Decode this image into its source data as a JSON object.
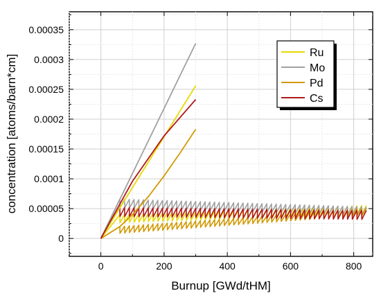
{
  "chart_data": {
    "type": "line",
    "title": "",
    "xlabel": "Burnup [GWd/tHM]",
    "ylabel": "concentration [atoms/barn*cm]",
    "xlim": [
      -100,
      860
    ],
    "ylim": [
      -3e-05,
      0.00038
    ],
    "x_ticks": [
      0,
      200,
      400,
      600,
      800
    ],
    "x_tick_labels": [
      "0",
      "200",
      "400",
      "600",
      "800"
    ],
    "y_ticks": [
      0,
      5e-05,
      0.0001,
      0.00015,
      0.0002,
      0.00025,
      0.0003,
      0.00035
    ],
    "y_tick_labels": [
      "0",
      "0.00005",
      "0.0001",
      "0.00015",
      "0.0002",
      "0.00025",
      "0.0003",
      "0.00035"
    ],
    "grid": true,
    "legend_position": "top-right",
    "series": [
      {
        "name": "Ru",
        "color": "#e6d800",
        "once_through": {
          "x": [
            0,
            300
          ],
          "y": [
            0,
            0.000256
          ]
        },
        "recycle": {
          "x": [
            0,
            60,
            830
          ],
          "y": [
            0,
            4e-05,
            5.5e-05
          ],
          "drop": 1.4e-05,
          "period": 15
        }
      },
      {
        "name": "Mo",
        "color": "#a0a0a0",
        "once_through": {
          "x": [
            0,
            300
          ],
          "y": [
            0,
            0.000327
          ]
        },
        "recycle": {
          "x": [
            0,
            60,
            830
          ],
          "y": [
            0,
            6.6e-05,
            5.3e-05
          ],
          "drop": 1.4e-05,
          "period": 15
        }
      },
      {
        "name": "Pd",
        "color": "#d19a00",
        "once_through": {
          "x": [
            0,
            60,
            100,
            150,
            200,
            250,
            300
          ],
          "y": [
            0,
            2e-05,
            4e-05,
            7e-05,
            0.000105,
            0.000143,
            0.000183
          ]
        },
        "recycle": {
          "x": [
            0,
            60,
            830
          ],
          "y": [
            0,
            2e-05,
            5e-05
          ],
          "drop": 1.2e-05,
          "period": 15
        }
      },
      {
        "name": "Cs",
        "color": "#b01818",
        "once_through": {
          "x": [
            0,
            100,
            200,
            300
          ],
          "y": [
            0,
            9.6e-05,
            0.000172,
            0.000233
          ]
        },
        "recycle": {
          "x": [
            0,
            60,
            830
          ],
          "y": [
            0,
            5.2e-05,
            4.7e-05
          ],
          "drop": 1.5e-05,
          "period": 15
        }
      }
    ]
  }
}
